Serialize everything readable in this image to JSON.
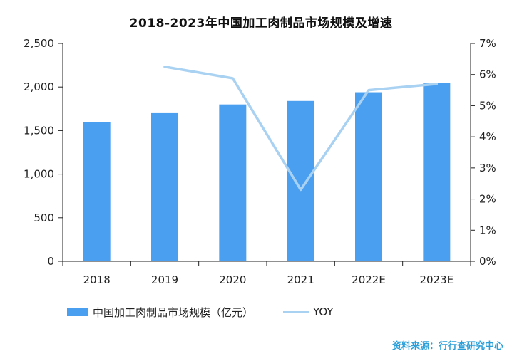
{
  "chart_data": {
    "type": "bar",
    "title": "2018-2023年中国加工肉制品市场规模及增速",
    "categories": [
      "2018",
      "2019",
      "2020",
      "2021",
      "2022E",
      "2023E"
    ],
    "series": [
      {
        "name": "中国加工肉制品市场规模（亿元）",
        "type": "bar",
        "axis": "left",
        "color": "#4a9ff0",
        "values": [
          1600,
          1700,
          1800,
          1840,
          1940,
          2050
        ]
      },
      {
        "name": "YOY",
        "type": "line",
        "axis": "right",
        "color": "#a9d1f2",
        "values": [
          null,
          6.25,
          5.88,
          2.3,
          5.5,
          5.7
        ]
      }
    ],
    "y_left": {
      "ylim": [
        0,
        2500
      ],
      "ticks": [
        "0",
        "500",
        "1,000",
        "1,500",
        "2,000",
        "2,500"
      ]
    },
    "y_right": {
      "ylim": [
        0,
        7
      ],
      "ticks": [
        "0%",
        "1%",
        "2%",
        "3%",
        "4%",
        "5%",
        "6%",
        "7%"
      ]
    },
    "grid": false,
    "legend_position": "bottom-left"
  },
  "source_text": "资料来源：行行查研究中心"
}
